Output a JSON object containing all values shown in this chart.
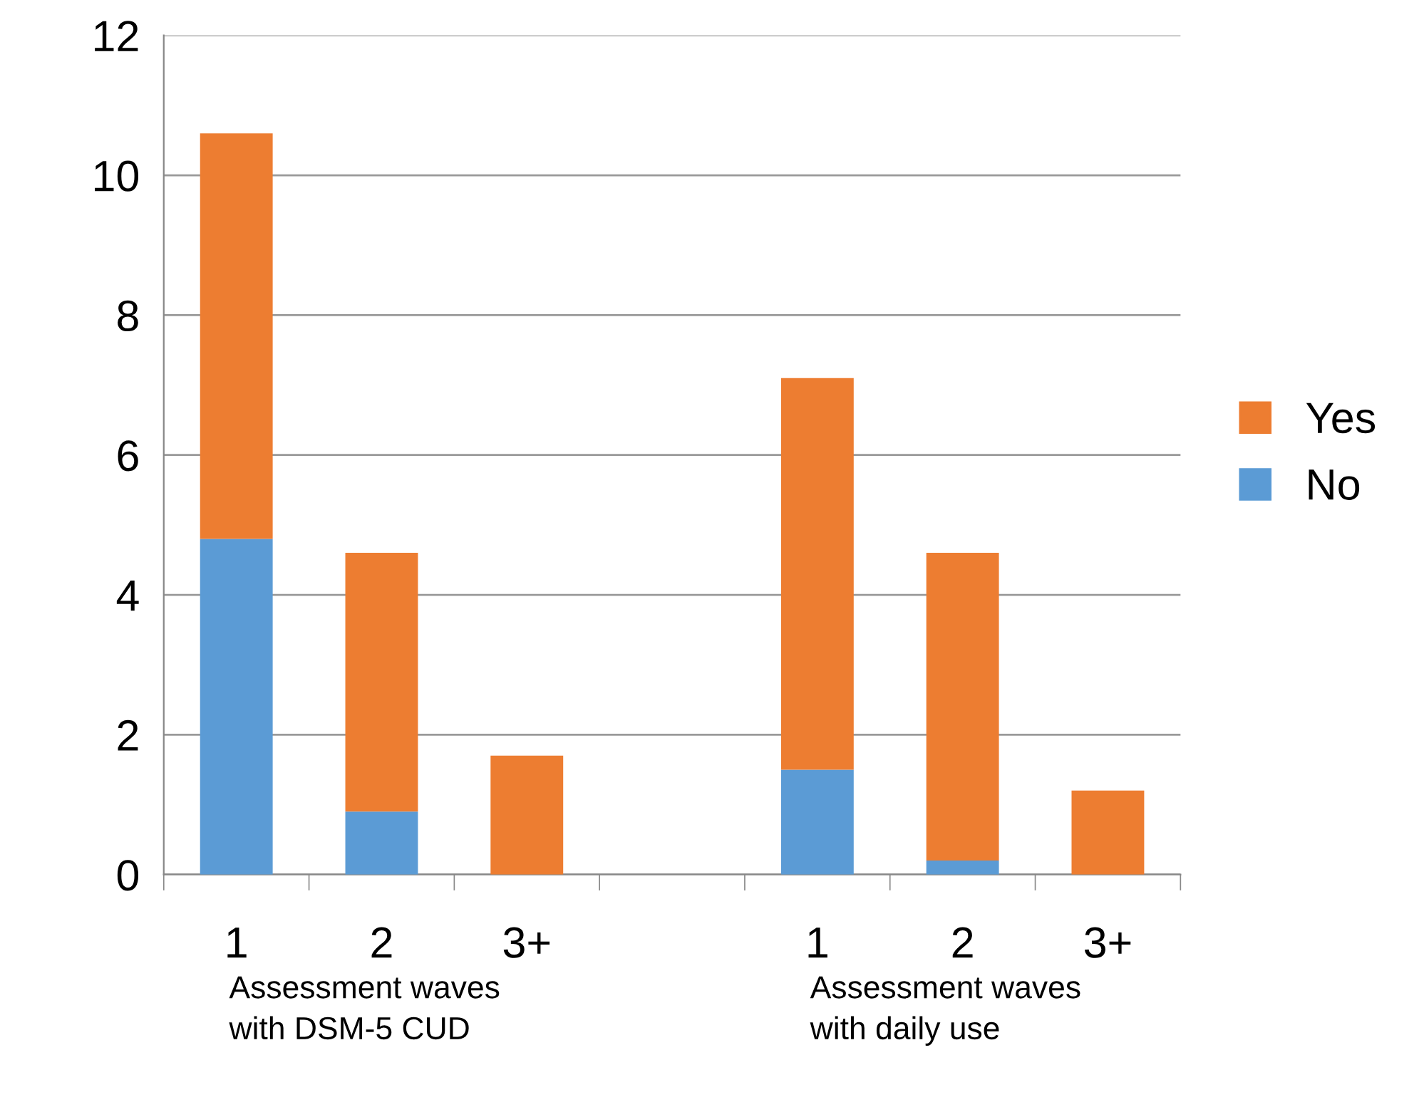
{
  "chart_data": {
    "type": "bar",
    "stacked": true,
    "categories": [
      "1",
      "2",
      "3+",
      null,
      "1",
      "2",
      "3+"
    ],
    "series": [
      {
        "name": "No",
        "color": "#5b9bd5",
        "values": [
          4.8,
          0.9,
          0,
          null,
          1.5,
          0.2,
          0
        ]
      },
      {
        "name": "Yes",
        "color": "#ed7d31",
        "values": [
          5.8,
          3.7,
          1.7,
          null,
          5.6,
          4.4,
          1.2
        ]
      }
    ],
    "ylim": [
      0,
      12
    ],
    "yticks": [
      0,
      2,
      4,
      6,
      8,
      10,
      12
    ],
    "grid": "y",
    "legend": "right",
    "annotations": [
      "Assessment waves\nwith DSM-5 CUD",
      "Assessment waves\nwith daily use"
    ]
  }
}
